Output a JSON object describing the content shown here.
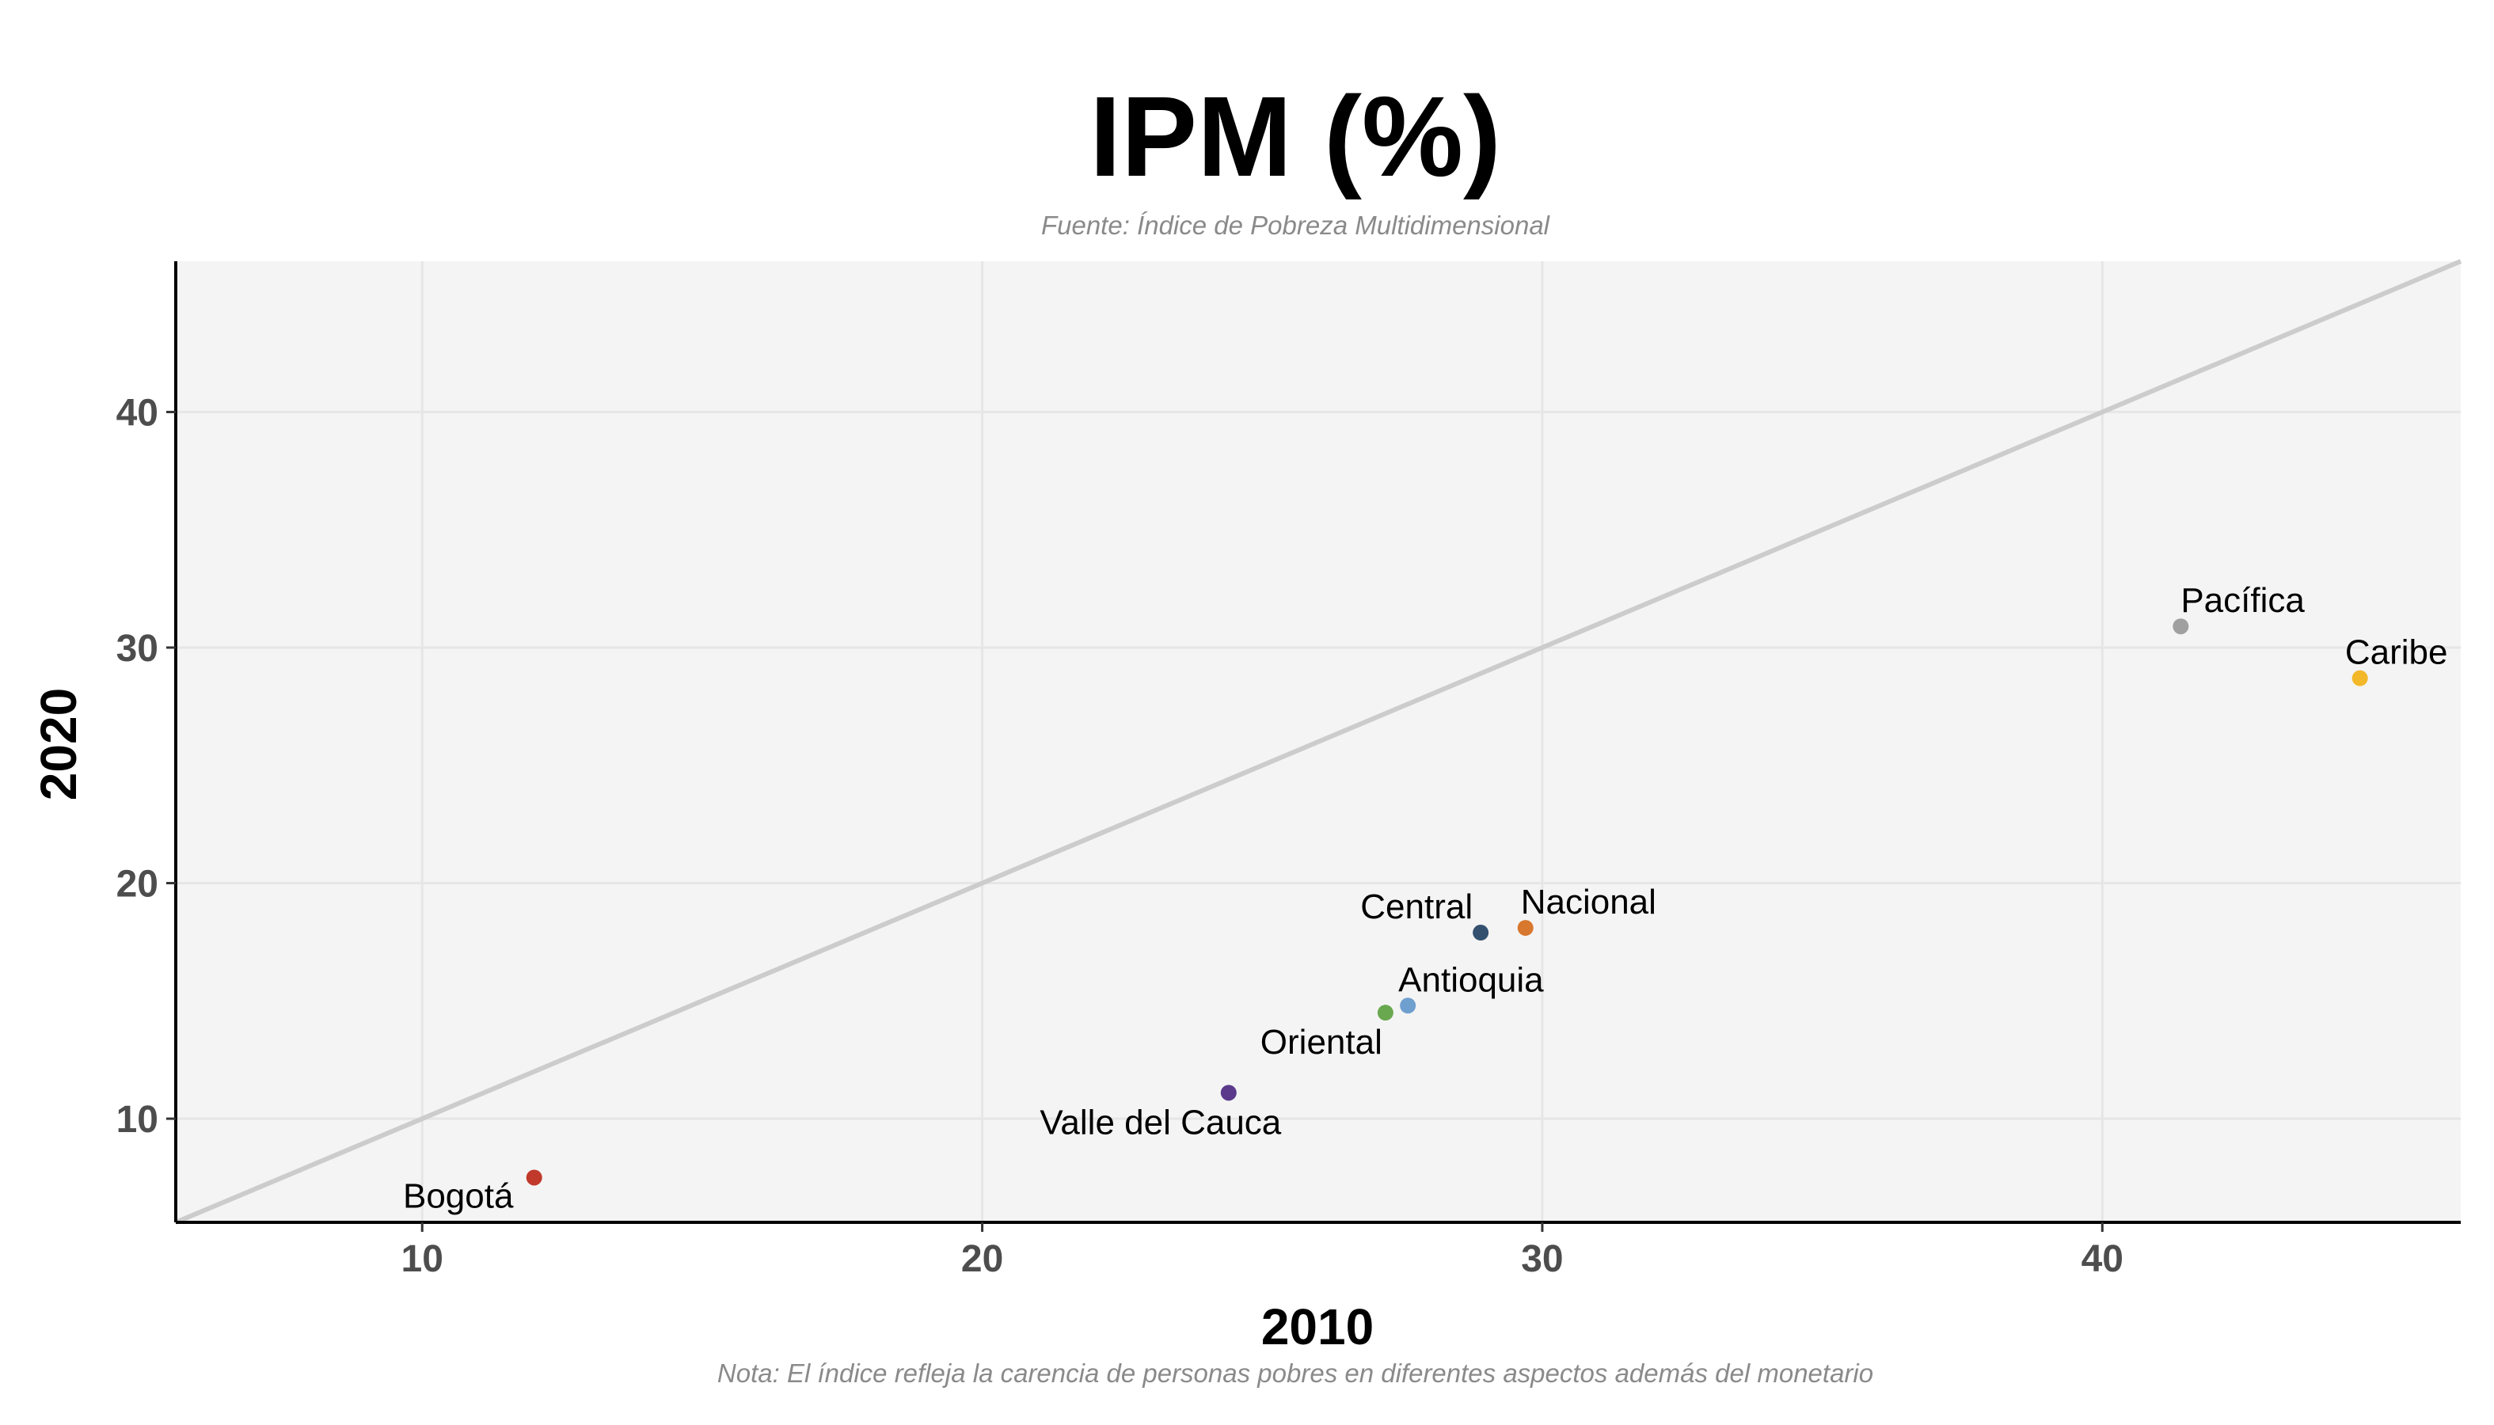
{
  "chart_data": {
    "type": "scatter",
    "title": "IPM (%)",
    "subtitle": "Fuente: Índice de Pobreza Multidimensional",
    "caption": "Nota: El índice refleja la carencia de personas pobres en diferentes aspectos además del monetario",
    "xlabel": "2010",
    "ylabel": "2020",
    "xlim": [
      5.6,
      46.4
    ],
    "ylim": [
      5.6,
      46.4
    ],
    "xticks": [
      10,
      20,
      30,
      40
    ],
    "yticks": [
      10,
      20,
      30,
      40
    ],
    "grid": true,
    "reference_line": "y = x",
    "points": [
      {
        "label": "Pacífica",
        "x": 41.4,
        "y": 30.9,
        "color": "#a0a0a0"
      },
      {
        "label": "Caribe",
        "x": 44.6,
        "y": 28.7,
        "color": "#f2b829"
      },
      {
        "label": "Nacional",
        "x": 29.7,
        "y": 18.1,
        "color": "#d8772e"
      },
      {
        "label": "Central",
        "x": 28.9,
        "y": 17.9,
        "color": "#33506f"
      },
      {
        "label": "Antioquia",
        "x": 27.6,
        "y": 14.8,
        "color": "#6f9fcf"
      },
      {
        "label": "Oriental",
        "x": 27.2,
        "y": 14.5,
        "color": "#69a84f"
      },
      {
        "label": "Valle del Cauca",
        "x": 24.4,
        "y": 11.1,
        "color": "#5b3a8c"
      },
      {
        "label": "Bogotá",
        "x": 12.0,
        "y": 7.5,
        "color": "#c0392b"
      }
    ]
  },
  "colors": {
    "panel_background": "#f4f4f4",
    "gridline": "#e6e6e6",
    "reference_line": "#cccccc"
  }
}
